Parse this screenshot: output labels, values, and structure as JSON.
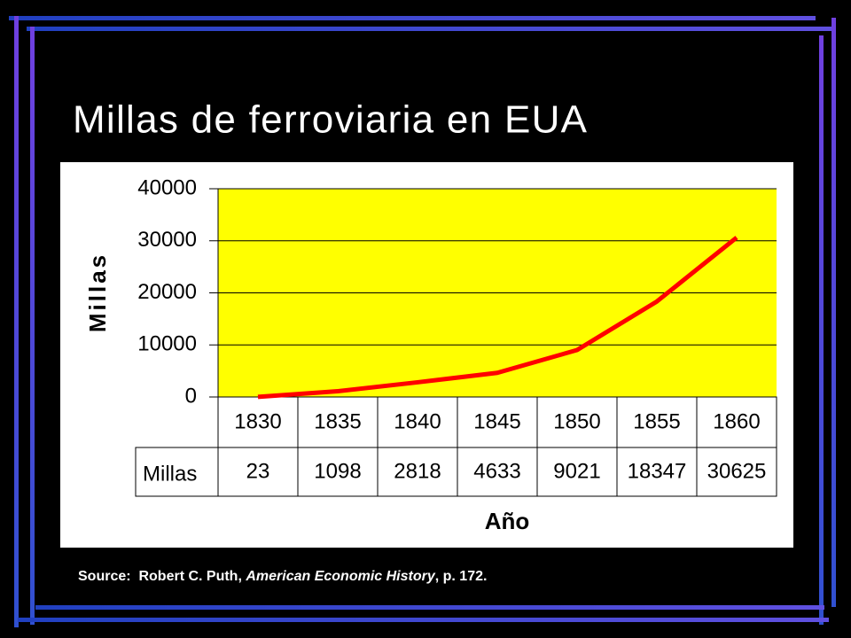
{
  "chart_data": {
    "type": "line",
    "title": "Millas de ferroviaria en EUA",
    "y_label": "Millas",
    "x_label": "Año",
    "categories": [
      "1830",
      "1835",
      "1840",
      "1845",
      "1850",
      "1855",
      "1860"
    ],
    "series": [
      {
        "name": "Millas",
        "color": "#ff0000",
        "values": [
          23,
          1098,
          2818,
          4633,
          9021,
          18347,
          30625
        ]
      }
    ],
    "ylim": [
      0,
      40000
    ],
    "yticks": [
      0,
      10000,
      20000,
      30000,
      40000
    ],
    "grid": true,
    "source": [
      "Source:  Robert C. Puth, ",
      "American Economic History",
      ", p. 172."
    ]
  }
}
